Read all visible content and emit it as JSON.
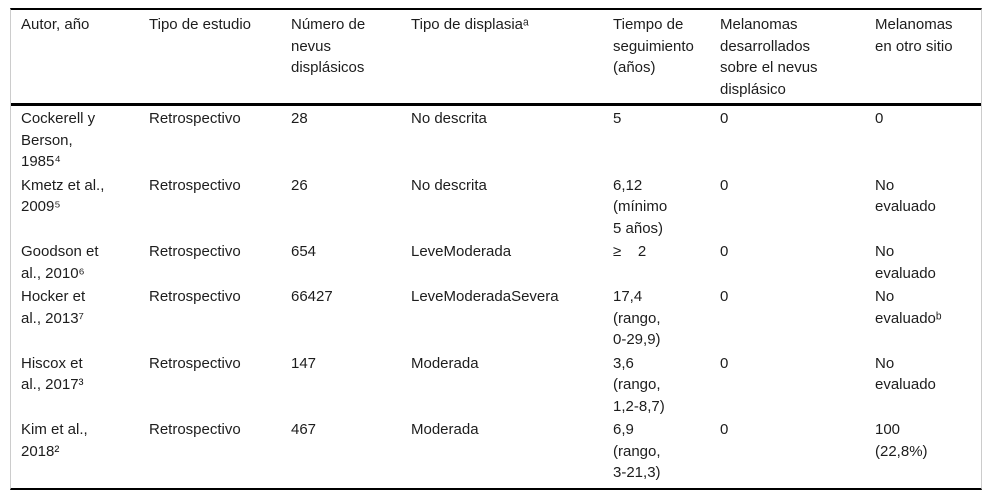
{
  "colors": {
    "text": "#1d1d1d",
    "horizontal_rule": "#000000",
    "side_frame": "#cccccc",
    "background": "#ffffff"
  },
  "table": {
    "headers": [
      "Autor, año",
      "Tipo de estudio",
      "Número de\nnevus\ndisplásicos",
      "Tipo de displasiaᵃ",
      "Tiempo de\nseguimiento\n(años)",
      "Melanomas\ndesarrollados\nsobre el nevus\ndisplásico",
      "Melanomas\nen otro sitio"
    ],
    "rows": [
      [
        "Cockerell y\nBerson,\n1985⁴",
        "Retrospectivo",
        "28",
        "No descrita",
        "5",
        "0",
        "0"
      ],
      [
        "Kmetz et al.,\n2009⁵",
        "Retrospectivo",
        "26",
        "No descrita",
        "6,12\n(mínimo\n5 años)",
        "0",
        "No\nevaluado"
      ],
      [
        "Goodson et\nal., 2010⁶",
        "Retrospectivo",
        "654",
        "LeveModerada",
        "≥    2",
        "0",
        "No\nevaluado"
      ],
      [
        "Hocker et\nal., 2013⁷",
        "Retrospectivo",
        "66427",
        "LeveModeradaSevera",
        "17,4\n(rango,\n0-29,9)",
        "0",
        "No\nevaluadoᵇ"
      ],
      [
        "Hiscox et\nal., 2017³",
        "Retrospectivo",
        "147",
        "Moderada",
        "3,6\n(rango,\n1,2-8,7)",
        "0",
        "No\nevaluado"
      ],
      [
        "Kim et al.,\n2018²",
        "Retrospectivo",
        "467",
        "Moderada",
        "6,9\n(rango,\n3-21,3)",
        "0",
        "100\n(22,8%)"
      ]
    ]
  }
}
